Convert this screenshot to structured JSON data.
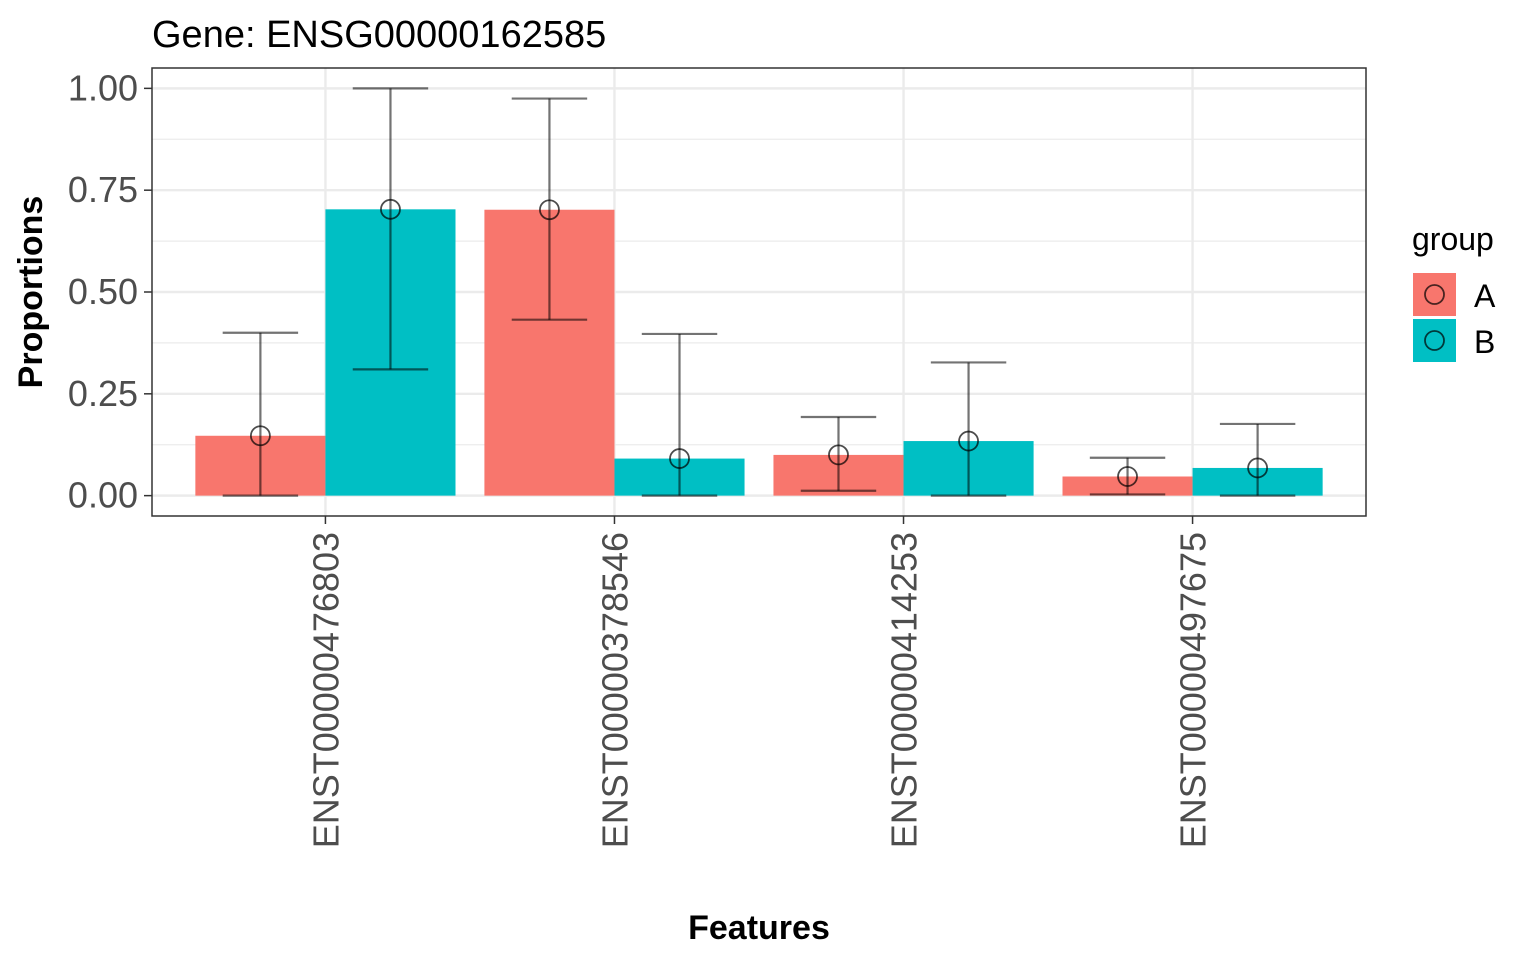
{
  "chart_data": {
    "type": "bar",
    "title": "Gene: ENSG00000162585",
    "xlabel": "Features",
    "ylabel": "Proportions",
    "categories": [
      "ENST00000476803",
      "ENST00000378546",
      "ENST00000414253",
      "ENST00000497675"
    ],
    "ylim": [
      -0.05,
      1.05
    ],
    "yticks": [
      0.0,
      0.25,
      0.5,
      0.75,
      1.0
    ],
    "ytick_labels": [
      "0.00",
      "0.25",
      "0.50",
      "0.75",
      "1.00"
    ],
    "grid": true,
    "legend": {
      "title": "group",
      "position": "right"
    },
    "series": [
      {
        "name": "A",
        "color": "#F8766D",
        "values": [
          0.147,
          0.702,
          0.1,
          0.047
        ],
        "points": [
          0.147,
          0.702,
          0.1,
          0.047
        ],
        "err_low": [
          0.0,
          0.432,
          0.012,
          0.003
        ],
        "err_high": [
          0.4,
          0.975,
          0.193,
          0.093
        ]
      },
      {
        "name": "B",
        "color": "#00BFC4",
        "values": [
          0.703,
          0.091,
          0.134,
          0.068
        ],
        "points": [
          0.703,
          0.091,
          0.134,
          0.068
        ],
        "err_low": [
          0.31,
          0.0,
          0.0,
          0.0
        ],
        "err_high": [
          1.0,
          0.397,
          0.327,
          0.176
        ]
      }
    ]
  }
}
